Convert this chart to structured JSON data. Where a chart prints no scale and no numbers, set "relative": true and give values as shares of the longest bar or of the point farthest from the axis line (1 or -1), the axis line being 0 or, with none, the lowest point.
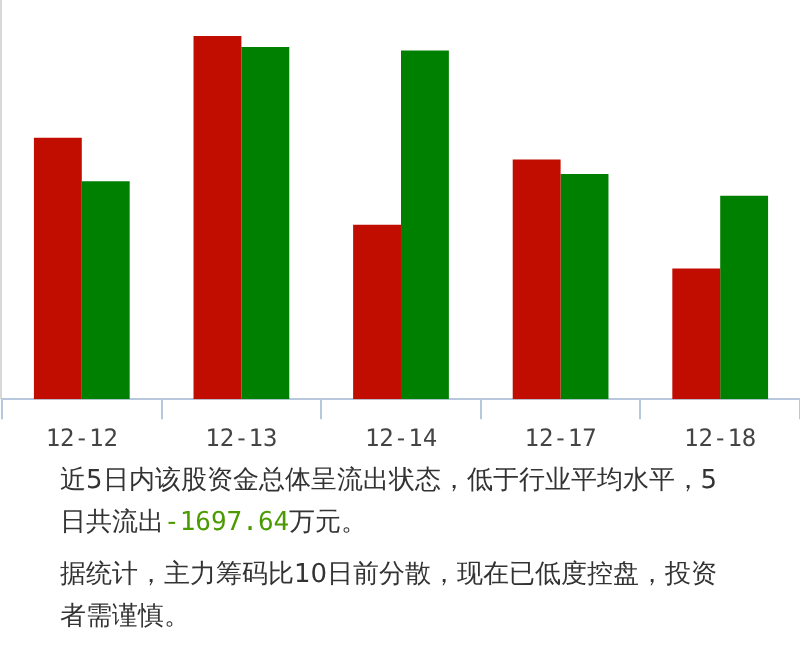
{
  "chart_data": {
    "type": "bar",
    "relative": true,
    "categories": [
      "12-12",
      "12-13",
      "12-14",
      "12-17",
      "12-18"
    ],
    "series": [
      {
        "color": "#c00d00",
        "values": [
          0.72,
          1,
          0.48,
          0.66,
          0.36
        ]
      },
      {
        "color": "#008000",
        "values": [
          0.6,
          0.97,
          0.96,
          0.62,
          0.56
        ]
      }
    ],
    "grid": false,
    "legend": false,
    "annotations": [
      "近5日内该股资金总体呈流出状态，低于行业平均水平，5日共流出-1697.64万元。",
      "据统计，主力筹码比10日前分散，现在已低度控盘，投资者需谨慎。"
    ]
  }
}
